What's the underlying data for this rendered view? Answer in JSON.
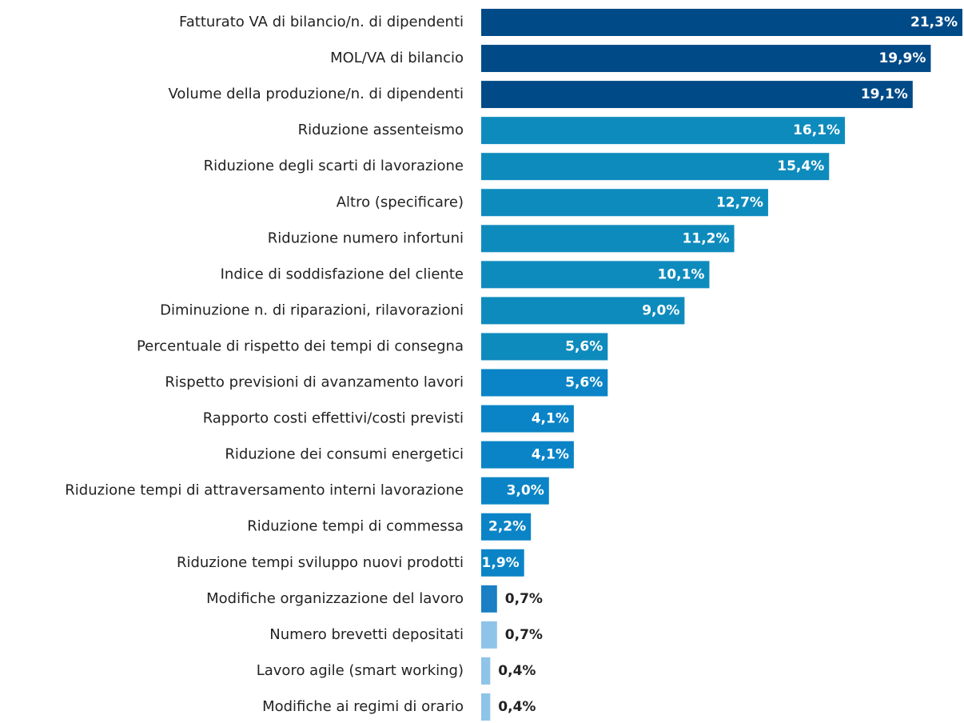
{
  "chart_data": {
    "type": "bar",
    "orientation": "horizontal",
    "categories": [
      "Fatturato VA di bilancio/n. di dipendenti",
      "MOL/VA di bilancio",
      "Volume della produzione/n. di dipendenti",
      "Riduzione assenteismo",
      "Riduzione degli scarti di lavorazione",
      "Altro (specificare)",
      "Riduzione numero infortuni",
      "Indice di soddisfazione del cliente",
      "Diminuzione n. di riparazioni, rilavorazioni",
      "Percentuale di rispetto dei tempi di consegna",
      "Rispetto previsioni di avanzamento lavori",
      "Rapporto costi effettivi/costi previsti",
      "Riduzione dei consumi energetici",
      "Riduzione tempi di attraversamento interni lavorazione",
      "Riduzione tempi di commessa",
      "Riduzione tempi sviluppo nuovi prodotti",
      "Modifiche organizzazione del lavoro",
      "Numero brevetti depositati",
      "Lavoro agile (smart working)",
      "Modifiche ai regimi di orario"
    ],
    "values": [
      21.3,
      19.9,
      19.1,
      16.1,
      15.4,
      12.7,
      11.2,
      10.1,
      9.0,
      5.6,
      5.6,
      4.1,
      4.1,
      3.0,
      2.2,
      1.9,
      0.7,
      0.7,
      0.4,
      0.4
    ],
    "value_labels": [
      "21,3%",
      "19,9%",
      "19,1%",
      "16,1%",
      "15,4%",
      "12,7%",
      "11,2%",
      "10,1%",
      "9,0%",
      "5,6%",
      "5,6%",
      "4,1%",
      "4,1%",
      "3,0%",
      "2,2%",
      "1,9%",
      "0,7%",
      "0,7%",
      "0,4%",
      "0,4%"
    ],
    "colors": [
      "#004a87",
      "#004a87",
      "#004a87",
      "#0e8bbd",
      "#0e8bbd",
      "#0e8bbd",
      "#0e8bbd",
      "#0e8bbd",
      "#0e8bbd",
      "#0e8bbd",
      "#0a84c6",
      "#0a84c6",
      "#0a84c6",
      "#0a84c6",
      "#0a84c6",
      "#0a84c6",
      "#1a7fc4",
      "#8ec4e8",
      "#8ec4e8",
      "#8ec4e8"
    ],
    "xlim": [
      0,
      21.3
    ]
  }
}
